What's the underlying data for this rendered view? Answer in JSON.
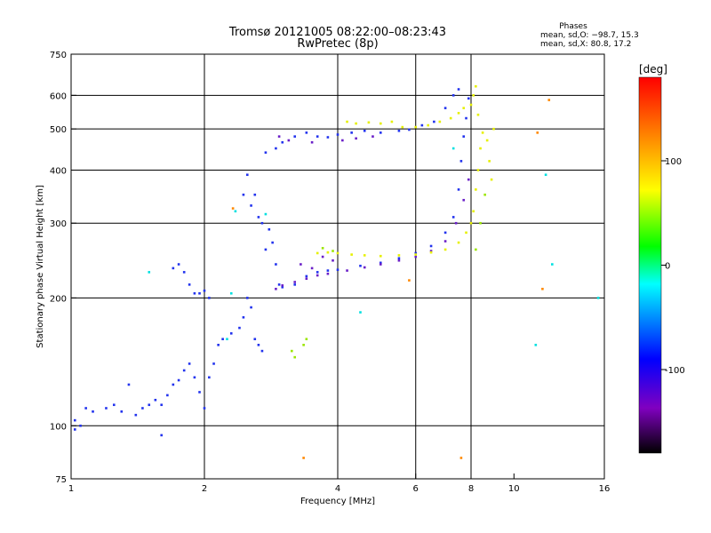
{
  "chart_data": {
    "type": "scatter",
    "title": "Tromsø 20121005 08:22:00–08:23:43",
    "subtitle": "RwPretec (8p)",
    "xlabel": "Frequency [MHz]",
    "ylabel": "Stationary phase Virtual Height [km]",
    "x_scale": "log",
    "y_scale": "log",
    "xlim": [
      1,
      16
    ],
    "ylim": [
      75,
      750
    ],
    "x_ticks": [
      1,
      2,
      4,
      6,
      8,
      10,
      16
    ],
    "y_ticks": [
      75,
      100,
      200,
      300,
      400,
      500,
      600,
      750
    ],
    "grid_x": [
      2,
      4,
      6,
      8
    ],
    "grid_y": [
      100,
      200,
      300,
      400,
      500,
      600
    ],
    "grid": true,
    "stats": {
      "heading": "Phases",
      "line_o": "mean, sd,O: −98.7, 15.3",
      "line_x": "mean, sd,X:  80.8, 17.2"
    },
    "colorbar": {
      "label": "[deg]",
      "range": [
        -180,
        180
      ],
      "ticks": [
        100,
        0,
        -100
      ],
      "colors": [
        "#ff0000",
        "#ffaa00",
        "#ffff00",
        "#00ff00",
        "#00ffff",
        "#0000ff",
        "#8000c0",
        "#000000"
      ]
    },
    "series": [
      {
        "color": "#2233ee",
        "points": [
          [
            1.02,
            103
          ],
          [
            1.05,
            100
          ],
          [
            1.08,
            110
          ],
          [
            1.12,
            108
          ],
          [
            1.2,
            110
          ],
          [
            1.25,
            112
          ],
          [
            1.3,
            108
          ],
          [
            1.35,
            125
          ],
          [
            1.4,
            106
          ],
          [
            1.45,
            110
          ],
          [
            1.5,
            112
          ],
          [
            1.55,
            115
          ],
          [
            1.6,
            112
          ],
          [
            1.65,
            118
          ],
          [
            1.7,
            125
          ],
          [
            1.75,
            128
          ],
          [
            1.8,
            135
          ],
          [
            1.85,
            140
          ],
          [
            1.9,
            130
          ],
          [
            1.95,
            120
          ],
          [
            2.0,
            110
          ],
          [
            2.05,
            130
          ],
          [
            2.1,
            140
          ],
          [
            2.15,
            155
          ],
          [
            2.2,
            160
          ],
          [
            2.3,
            165
          ],
          [
            2.4,
            170
          ],
          [
            2.45,
            180
          ],
          [
            2.5,
            200
          ],
          [
            2.55,
            190
          ],
          [
            2.6,
            160
          ],
          [
            2.65,
            155
          ],
          [
            2.7,
            150
          ],
          [
            2.75,
            260
          ],
          [
            2.8,
            290
          ],
          [
            2.85,
            270
          ],
          [
            2.9,
            240
          ],
          [
            2.95,
            215
          ],
          [
            3.0,
            212
          ],
          [
            3.2,
            215
          ],
          [
            3.4,
            225
          ],
          [
            3.6,
            230
          ],
          [
            3.8,
            232
          ],
          [
            4.0,
            233
          ],
          [
            4.5,
            238
          ],
          [
            5.0,
            242
          ],
          [
            5.5,
            248
          ],
          [
            6.0,
            255
          ],
          [
            6.5,
            265
          ],
          [
            7.0,
            285
          ],
          [
            7.3,
            310
          ],
          [
            7.5,
            360
          ],
          [
            7.6,
            420
          ],
          [
            7.7,
            480
          ],
          [
            7.8,
            530
          ],
          [
            7.9,
            590
          ],
          [
            1.7,
            235
          ],
          [
            1.75,
            240
          ],
          [
            1.8,
            230
          ],
          [
            1.85,
            215
          ],
          [
            1.9,
            205
          ],
          [
            1.95,
            205
          ],
          [
            2.0,
            208
          ],
          [
            2.05,
            200
          ],
          [
            2.55,
            330
          ],
          [
            2.6,
            350
          ],
          [
            2.65,
            310
          ],
          [
            2.7,
            300
          ],
          [
            2.75,
            440
          ],
          [
            2.9,
            450
          ],
          [
            3.0,
            465
          ],
          [
            3.2,
            480
          ],
          [
            3.4,
            490
          ],
          [
            3.6,
            480
          ],
          [
            3.8,
            478
          ],
          [
            4.0,
            485
          ],
          [
            4.3,
            490
          ],
          [
            4.6,
            495
          ],
          [
            5.0,
            490
          ],
          [
            5.5,
            495
          ],
          [
            5.8,
            498
          ],
          [
            6.2,
            510
          ],
          [
            6.6,
            520
          ],
          [
            7.0,
            560
          ],
          [
            7.3,
            600
          ],
          [
            7.5,
            620
          ],
          [
            2.5,
            390
          ],
          [
            2.45,
            350
          ],
          [
            1.6,
            95
          ],
          [
            1.02,
            98
          ]
        ]
      },
      {
        "color": "#6a1fc8",
        "points": [
          [
            2.9,
            210
          ],
          [
            3.0,
            214
          ],
          [
            3.2,
            218
          ],
          [
            3.4,
            222
          ],
          [
            3.6,
            226
          ],
          [
            3.8,
            228
          ],
          [
            4.2,
            232
          ],
          [
            4.6,
            236
          ],
          [
            5.0,
            240
          ],
          [
            5.5,
            245
          ],
          [
            6.0,
            250
          ],
          [
            6.5,
            258
          ],
          [
            7.0,
            272
          ],
          [
            7.4,
            300
          ],
          [
            7.7,
            340
          ],
          [
            7.9,
            380
          ],
          [
            3.3,
            240
          ],
          [
            3.5,
            235
          ],
          [
            3.7,
            250
          ],
          [
            3.9,
            245
          ],
          [
            4.1,
            470
          ],
          [
            4.4,
            475
          ],
          [
            4.8,
            480
          ],
          [
            3.1,
            470
          ],
          [
            3.5,
            465
          ],
          [
            2.95,
            480
          ]
        ]
      },
      {
        "color": "#e6f000",
        "points": [
          [
            3.6,
            255
          ],
          [
            3.8,
            256
          ],
          [
            4.0,
            255
          ],
          [
            4.3,
            253
          ],
          [
            4.6,
            252
          ],
          [
            5.0,
            251
          ],
          [
            5.5,
            252
          ],
          [
            6.0,
            253
          ],
          [
            6.5,
            256
          ],
          [
            7.0,
            260
          ],
          [
            7.5,
            270
          ],
          [
            7.8,
            285
          ],
          [
            8.0,
            300
          ],
          [
            8.1,
            320
          ],
          [
            8.2,
            360
          ],
          [
            8.3,
            400
          ],
          [
            8.4,
            450
          ],
          [
            8.5,
            490
          ],
          [
            8.7,
            470
          ],
          [
            8.8,
            420
          ],
          [
            8.9,
            380
          ],
          [
            9.0,
            500
          ],
          [
            8.3,
            540
          ],
          [
            8.0,
            570
          ],
          [
            7.7,
            560
          ],
          [
            7.5,
            545
          ],
          [
            7.2,
            530
          ],
          [
            6.8,
            520
          ],
          [
            6.4,
            510
          ],
          [
            6.0,
            505
          ],
          [
            5.6,
            505
          ],
          [
            5.3,
            520
          ],
          [
            5.0,
            515
          ],
          [
            4.7,
            518
          ],
          [
            4.4,
            515
          ],
          [
            4.2,
            520
          ],
          [
            8.1,
            600
          ],
          [
            8.2,
            630
          ]
        ]
      },
      {
        "color": "#9be600",
        "points": [
          [
            3.35,
            155
          ],
          [
            3.4,
            160
          ],
          [
            3.15,
            150
          ],
          [
            3.2,
            145
          ],
          [
            8.2,
            260
          ],
          [
            8.4,
            300
          ],
          [
            8.6,
            350
          ],
          [
            3.7,
            262
          ],
          [
            3.9,
            258
          ]
        ]
      },
      {
        "color": "#00e0e0",
        "points": [
          [
            2.35,
            320
          ],
          [
            2.75,
            315
          ],
          [
            7.3,
            450
          ],
          [
            11.8,
            390
          ],
          [
            12.2,
            240
          ],
          [
            15.5,
            200
          ],
          [
            1.5,
            230
          ],
          [
            2.3,
            205
          ],
          [
            4.5,
            185
          ],
          [
            2.25,
            160
          ],
          [
            11.2,
            155
          ]
        ]
      },
      {
        "color": "#ff8800",
        "points": [
          [
            3.35,
            84
          ],
          [
            7.6,
            84
          ],
          [
            12.0,
            585
          ],
          [
            11.6,
            210
          ],
          [
            11.3,
            490
          ],
          [
            5.8,
            220
          ],
          [
            2.32,
            325
          ]
        ]
      }
    ]
  }
}
